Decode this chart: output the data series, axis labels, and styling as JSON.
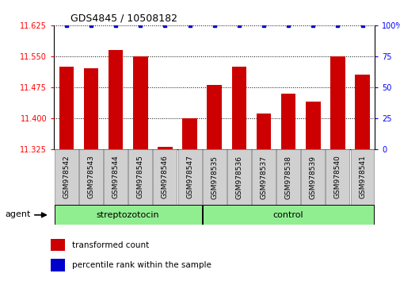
{
  "title": "GDS4845 / 10508182",
  "samples": [
    "GSM978542",
    "GSM978543",
    "GSM978544",
    "GSM978545",
    "GSM978546",
    "GSM978547",
    "GSM978535",
    "GSM978536",
    "GSM978537",
    "GSM978538",
    "GSM978539",
    "GSM978540",
    "GSM978541"
  ],
  "bar_values": [
    11.525,
    11.52,
    11.565,
    11.55,
    11.33,
    11.4,
    11.48,
    11.525,
    11.41,
    11.46,
    11.44,
    11.55,
    11.505
  ],
  "percentile_values": [
    100,
    100,
    100,
    100,
    100,
    100,
    100,
    100,
    100,
    100,
    100,
    100,
    100
  ],
  "bar_color": "#cc0000",
  "percentile_color": "#0000cc",
  "ymin": 11.325,
  "ymax": 11.625,
  "yticks": [
    11.325,
    11.4,
    11.475,
    11.55,
    11.625
  ],
  "y2min": 0,
  "y2max": 100,
  "y2ticks": [
    0,
    25,
    50,
    75,
    100
  ],
  "y2ticklabels": [
    "0",
    "25",
    "50",
    "75",
    "100%"
  ],
  "group1_label": "streptozotocin",
  "group2_label": "control",
  "group1_count": 6,
  "group2_count": 7,
  "agent_label": "agent",
  "legend1": "transformed count",
  "legend2": "percentile rank within the sample",
  "bar_width": 0.6,
  "group1_color": "#90ee90",
  "group2_color": "#90ee90",
  "ticklabel_bg": "#d0d0d0",
  "ticklabel_edgecolor": "#888888"
}
